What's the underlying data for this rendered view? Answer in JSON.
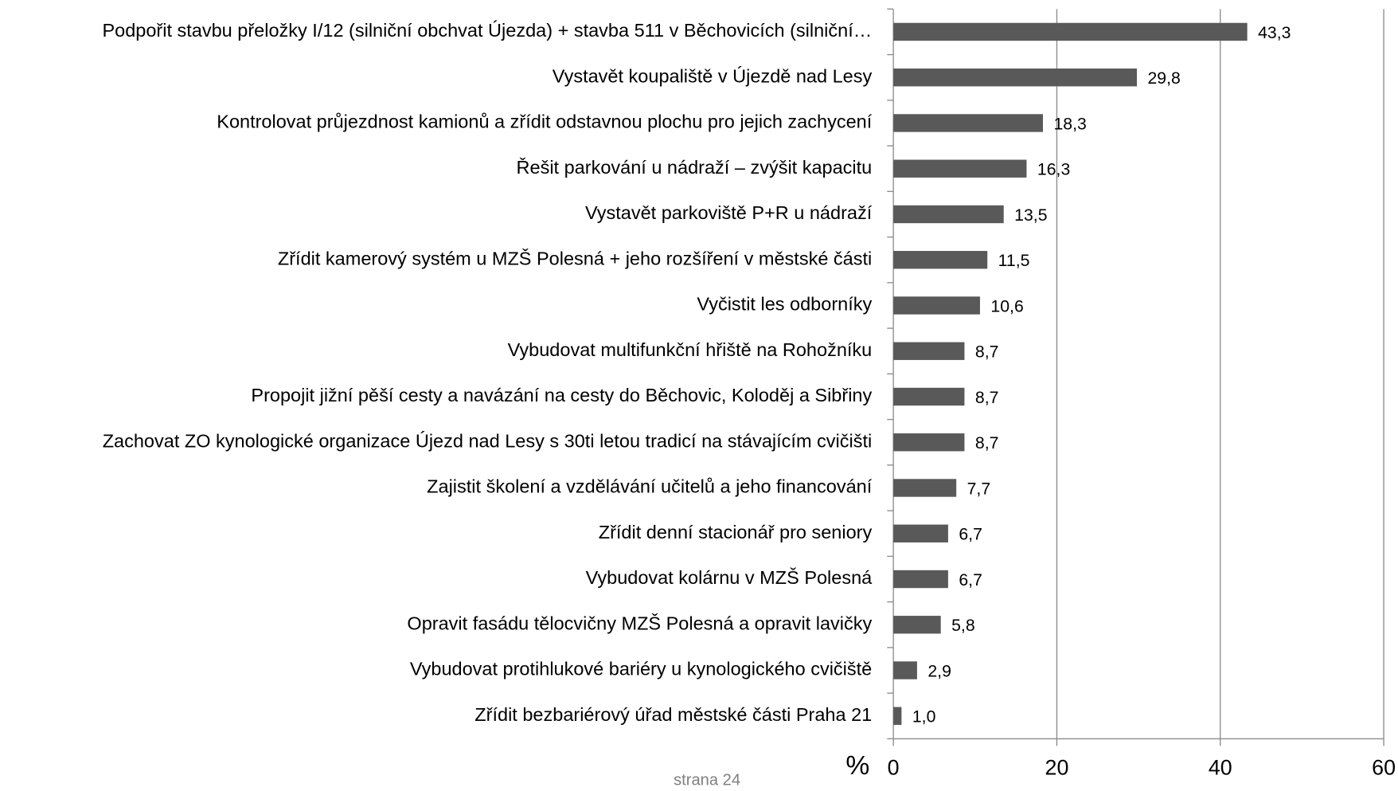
{
  "chart_data": {
    "type": "barh",
    "categories": [
      "Podpořit stavbu přeložky I/12 (silniční obchvat Újezda) + stavba 511  v Běchovicích (silniční…",
      "Vystavět koupaliště v Újezdě nad Lesy",
      "Kontrolovat průjezdnost kamionů a zřídit odstavnou plochu pro jejich zachycení",
      "Řešit parkování u nádraží – zvýšit kapacitu",
      "Vystavět parkoviště P+R u nádraží",
      "Zřídit kamerový systém u MZŠ Polesná + jeho rozšíření v městské části",
      "Vyčistit les odborníky",
      "Vybudovat multifunkční hřiště na Rohožníku",
      "Propojit jižní pěší cesty a navázání na cesty do Běchovic, Koloděj a Sibřiny",
      "Zachovat ZO kynologické organizace Újezd nad Lesy s 30ti letou tradicí na stávajícím cvičišti",
      "Zajistit školení a vzdělávání učitelů a jeho  financování",
      "Zřídit denní stacionář pro seniory",
      "Vybudovat kolárnu v MZŠ Polesná",
      "Opravit fasádu tělocvičny MZŠ Polesná a opravit lavičky",
      "Vybudovat protihlukové bariéry u kynologického cvičiště",
      "Zřídit bezbariérový úřad městské části Praha 21"
    ],
    "values": [
      43.3,
      29.8,
      18.3,
      16.3,
      13.5,
      11.5,
      10.6,
      8.7,
      8.7,
      8.7,
      7.7,
      6.7,
      6.7,
      5.8,
      2.9,
      1.0
    ],
    "value_labels": [
      "43,3",
      "29,8",
      "18,3",
      "16,3",
      "13,5",
      "11,5",
      "10,6",
      "8,7",
      "8,7",
      "8,7",
      "7,7",
      "6,7",
      "6,7",
      "5,8",
      "2,9",
      "1,0"
    ],
    "color": "#595959",
    "x_label": "%",
    "xlim": [
      0,
      60
    ],
    "xticks": [
      0,
      20,
      40,
      60
    ],
    "grid": true
  },
  "footer": "strana 24"
}
